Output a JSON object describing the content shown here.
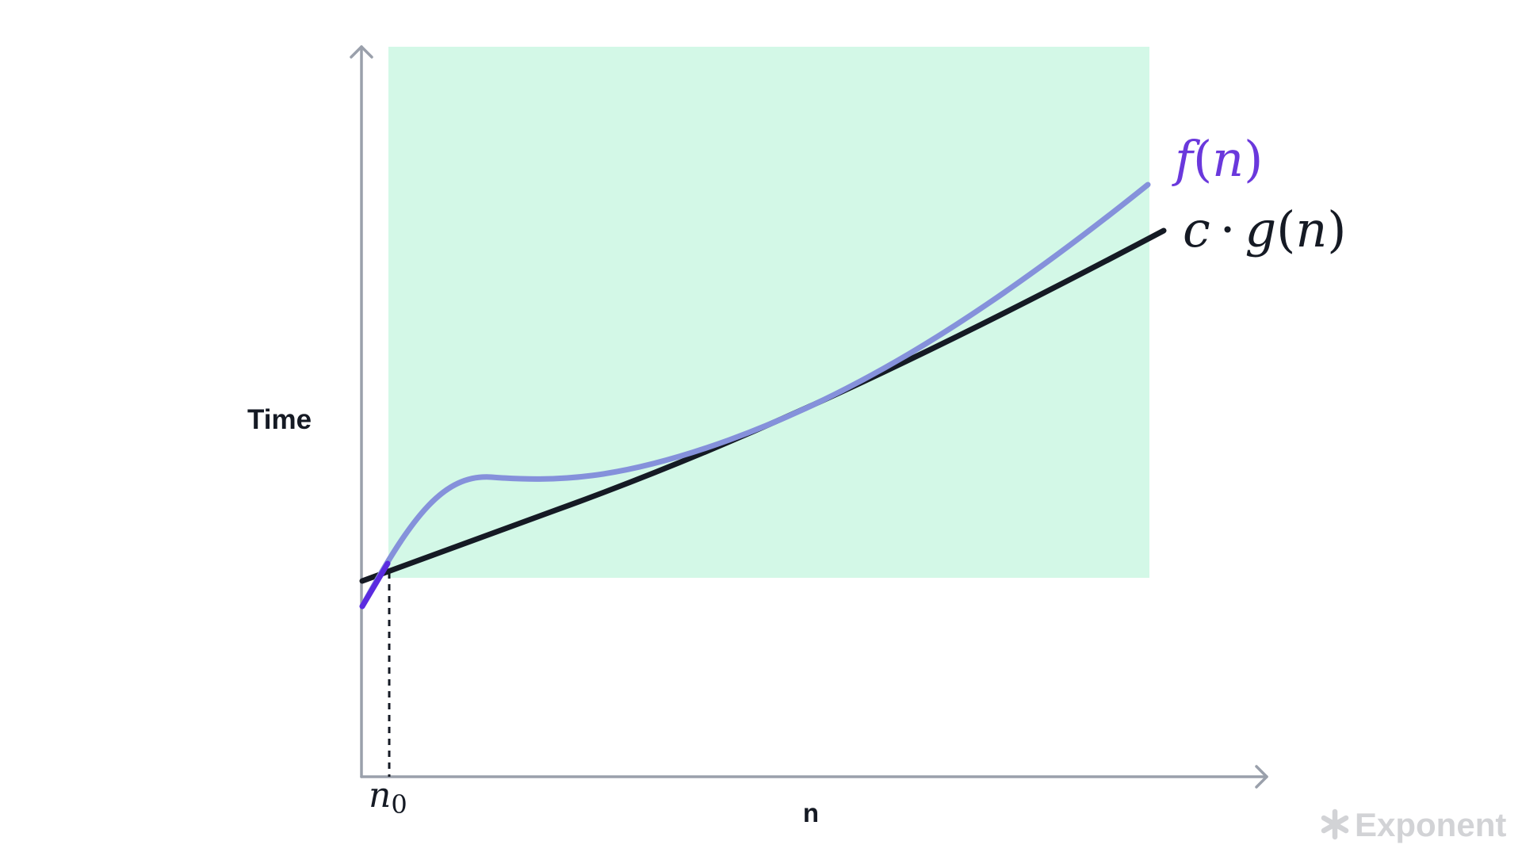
{
  "diagram": {
    "y_axis_label": "Time",
    "x_axis_label": "n",
    "region_color": "#d3f8e7",
    "axis_color": "#9aa0ab",
    "f_curve": {
      "label_fn": "f",
      "label_open": "(",
      "label_var": "n",
      "label_close": ")",
      "color": "#8591db",
      "label_color": "#6a38dc",
      "start_color": "#5b2be0"
    },
    "g_curve": {
      "label_c": "c",
      "label_dot": "·",
      "label_fn": "g",
      "label_open": "(",
      "label_var": "n",
      "label_close": ")",
      "color": "#151a24"
    },
    "threshold": {
      "label_base": "n",
      "label_sub": "0"
    }
  },
  "brand": {
    "name": "Exponent",
    "color": "#d2d3d6"
  }
}
